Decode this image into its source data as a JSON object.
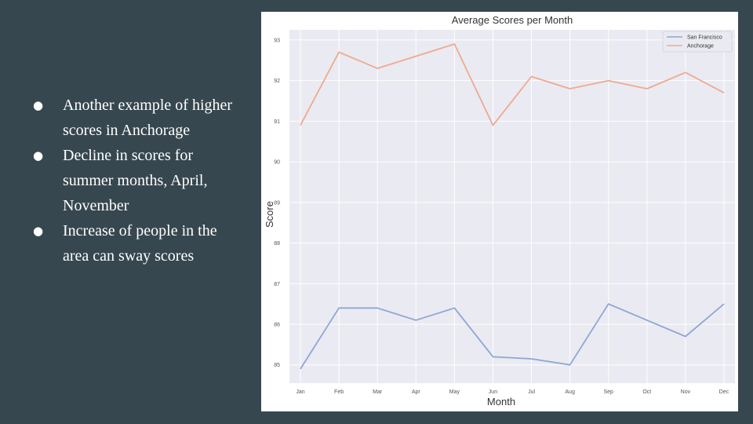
{
  "slide": {
    "bullets": [
      "Another example of higher scores in Anchorage",
      "Decline in scores for summer months, April, November",
      "Increase of people in the area can sway scores"
    ]
  },
  "chart_data": {
    "type": "line",
    "title": "Average Scores per Month",
    "xlabel": "Month",
    "ylabel": "Score",
    "categories": [
      "Jan",
      "Feb",
      "Mar",
      "Apr",
      "May",
      "Jun",
      "Jul",
      "Aug",
      "Sep",
      "Oct",
      "Nov",
      "Dec"
    ],
    "yticks": [
      85,
      86,
      87,
      88,
      89,
      90,
      91,
      92,
      93
    ],
    "ylim": [
      84.55,
      93.25
    ],
    "grid": true,
    "legend_position": "top-right",
    "background": "#eaeaf2",
    "series": [
      {
        "name": "San Francisco",
        "color": "#8fa6d4",
        "values": [
          84.9,
          86.4,
          86.4,
          86.1,
          86.4,
          85.2,
          85.15,
          85.0,
          86.5,
          86.1,
          85.7,
          86.5
        ]
      },
      {
        "name": "Anchorage",
        "color": "#eeaa8e",
        "values": [
          90.9,
          92.7,
          92.3,
          92.6,
          92.9,
          90.9,
          92.1,
          91.8,
          92.0,
          91.8,
          92.2,
          91.7
        ]
      }
    ]
  }
}
